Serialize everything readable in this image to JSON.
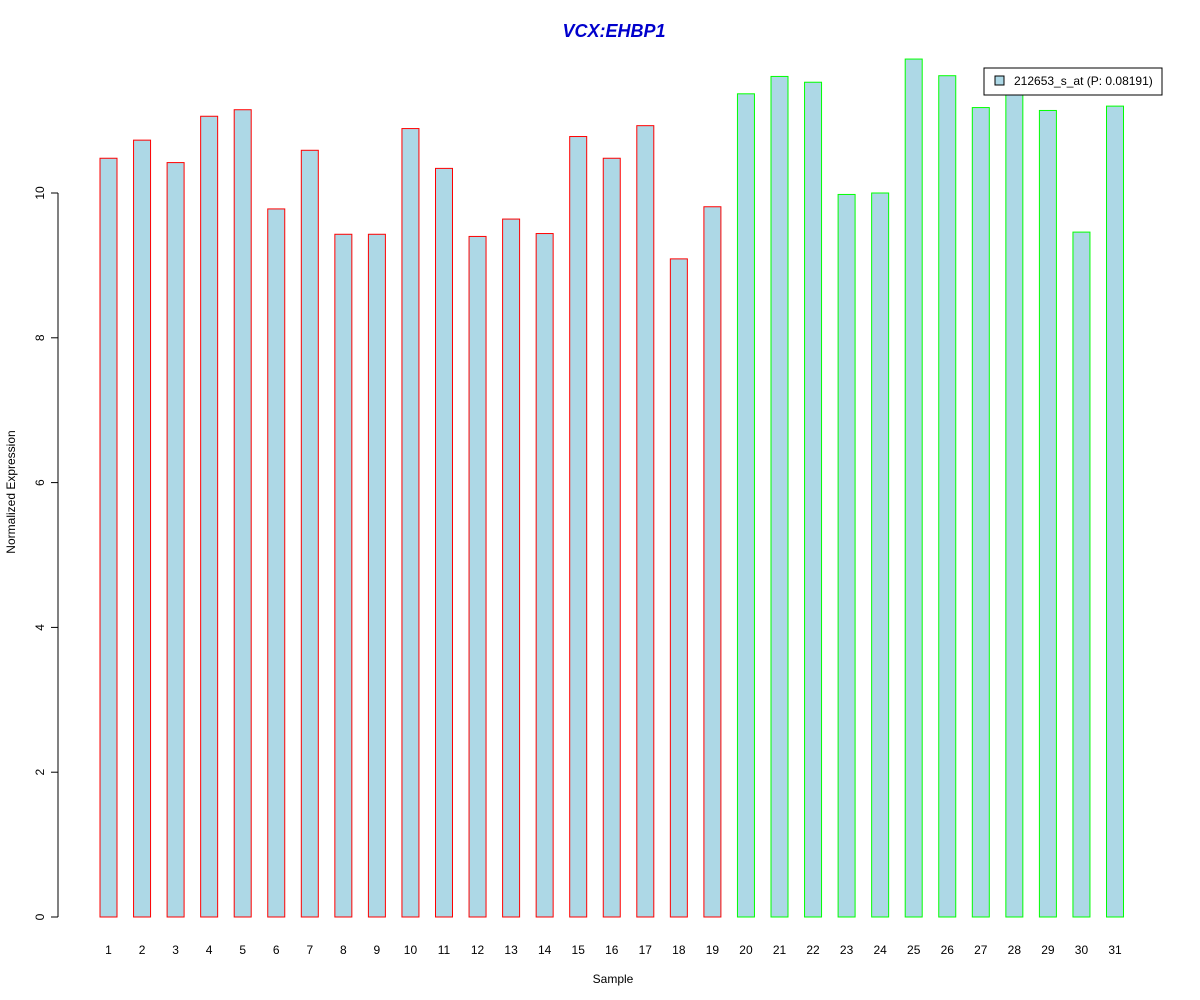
{
  "chart_data": {
    "type": "bar",
    "title": "VCX:EHBP1",
    "xlabel": "Sample",
    "ylabel": "Normalized Expression",
    "ylim": [
      0,
      11.9
    ],
    "yticks": [
      0,
      2,
      4,
      6,
      8,
      10
    ],
    "grid": false,
    "legend": {
      "placement": "top-right",
      "entries": [
        {
          "label": "212653_s_at (P: 0.08191)",
          "fill": "#add8e6"
        }
      ]
    },
    "bar_fill": "#add8e6",
    "group_colors": {
      "group1": "#ff0000",
      "group2": "#00ff00"
    },
    "categories": [
      "1",
      "2",
      "3",
      "4",
      "5",
      "6",
      "7",
      "8",
      "9",
      "10",
      "11",
      "12",
      "13",
      "14",
      "15",
      "16",
      "17",
      "18",
      "19",
      "20",
      "21",
      "22",
      "23",
      "24",
      "25",
      "26",
      "27",
      "28",
      "29",
      "30",
      "31"
    ],
    "groups": [
      "group1",
      "group1",
      "group1",
      "group1",
      "group1",
      "group1",
      "group1",
      "group1",
      "group1",
      "group1",
      "group1",
      "group1",
      "group1",
      "group1",
      "group1",
      "group1",
      "group1",
      "group1",
      "group1",
      "group2",
      "group2",
      "group2",
      "group2",
      "group2",
      "group2",
      "group2",
      "group2",
      "group2",
      "group2",
      "group2",
      "group2"
    ],
    "series": [
      {
        "values": [
          10.48,
          10.73,
          10.42,
          11.06,
          11.15,
          9.78,
          10.59,
          9.43,
          9.43,
          10.89,
          10.34,
          9.4,
          9.64,
          9.44,
          10.78,
          10.48,
          10.93,
          9.09,
          9.81,
          11.37,
          11.61,
          11.53,
          9.98,
          10.0,
          11.85,
          11.62,
          11.18,
          11.43,
          11.14,
          9.46,
          11.2
        ]
      }
    ]
  }
}
